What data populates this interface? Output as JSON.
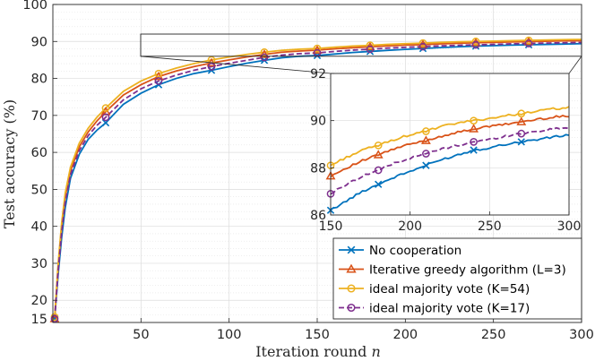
{
  "chart_data": {
    "type": "line",
    "xlabel": "Iteration round",
    "xlabel_var": "n",
    "ylabel": "Test accuracy (%)",
    "xlim": [
      0,
      300
    ],
    "ylim": [
      14,
      100
    ],
    "xticks": [
      50,
      100,
      150,
      200,
      250,
      300
    ],
    "yticks": [
      20,
      30,
      40,
      50,
      60,
      70,
      80,
      90,
      100
    ],
    "yticks_labels": [
      "20",
      "30",
      "40",
      "50",
      "60",
      "70",
      "80",
      "90",
      "100"
    ],
    "y_extra_tick_label": "15",
    "grid": true,
    "legend_location": "bottom-right",
    "series": [
      {
        "name": "No cooperation",
        "color": "#0072BD",
        "marker": "x",
        "style": "solid",
        "x": [
          1,
          3,
          5,
          7,
          10,
          15,
          20,
          25,
          30,
          40,
          50,
          60,
          70,
          80,
          90,
          100,
          110,
          120,
          130,
          140,
          150,
          160,
          170,
          180,
          190,
          200,
          210,
          220,
          230,
          240,
          250,
          260,
          270,
          280,
          290,
          300
        ],
        "y": [
          15,
          27,
          37,
          45,
          53,
          59.5,
          63.5,
          66,
          68,
          73,
          76,
          78.3,
          80,
          81.3,
          82.2,
          83.2,
          84.1,
          84.9,
          85.6,
          86,
          86.2,
          86.6,
          87,
          87.3,
          87.6,
          87.85,
          88.1,
          88.35,
          88.55,
          88.75,
          88.85,
          89,
          89.1,
          89.2,
          89.3,
          89.4
        ]
      },
      {
        "name": "Iterative greedy algorithm (L=3)",
        "color": "#D95319",
        "marker": "triangle",
        "style": "solid",
        "x": [
          1,
          3,
          5,
          7,
          10,
          15,
          20,
          25,
          30,
          40,
          50,
          60,
          70,
          80,
          90,
          100,
          110,
          120,
          130,
          140,
          150,
          160,
          170,
          180,
          190,
          200,
          210,
          220,
          230,
          240,
          250,
          260,
          270,
          280,
          290,
          300
        ],
        "y": [
          15,
          29,
          40,
          48,
          55,
          61.5,
          65.5,
          68.5,
          71,
          75.5,
          78.3,
          80.5,
          82,
          83.2,
          84.2,
          85,
          85.8,
          86.5,
          87.1,
          87.4,
          87.65,
          88,
          88.3,
          88.55,
          88.8,
          89,
          89.15,
          89.35,
          89.5,
          89.65,
          89.75,
          89.85,
          89.95,
          90.05,
          90.15,
          90.2
        ]
      },
      {
        "name": "ideal majority vote (K=54)",
        "color": "#EDB120",
        "marker": "circle",
        "style": "solid",
        "x": [
          1,
          3,
          5,
          7,
          10,
          15,
          20,
          25,
          30,
          40,
          50,
          60,
          70,
          80,
          90,
          100,
          110,
          120,
          130,
          140,
          150,
          160,
          170,
          180,
          190,
          200,
          210,
          220,
          230,
          240,
          250,
          260,
          270,
          280,
          290,
          300
        ],
        "y": [
          15.5,
          30,
          41,
          49,
          56,
          62.5,
          66.5,
          69.5,
          72,
          76.5,
          79.3,
          81.3,
          82.8,
          84,
          85,
          85.8,
          86.5,
          87.1,
          87.6,
          87.9,
          88.1,
          88.45,
          88.75,
          88.95,
          89.2,
          89.4,
          89.55,
          89.75,
          89.9,
          90,
          90.1,
          90.2,
          90.3,
          90.4,
          90.5,
          90.55
        ]
      },
      {
        "name": "ideal majority vote (K=17)",
        "color": "#7E2F8E",
        "marker": "circle",
        "style": "dashed",
        "x": [
          1,
          3,
          5,
          7,
          10,
          15,
          20,
          25,
          30,
          40,
          50,
          60,
          70,
          80,
          90,
          100,
          110,
          120,
          130,
          140,
          150,
          160,
          170,
          180,
          190,
          200,
          210,
          220,
          230,
          240,
          250,
          260,
          270,
          280,
          290,
          300
        ],
        "y": [
          15,
          28,
          38.5,
          46.5,
          54,
          60.5,
          64.5,
          67.3,
          69.5,
          74.2,
          77.2,
          79.3,
          80.9,
          82.2,
          83.2,
          84.1,
          84.9,
          85.7,
          86.3,
          86.7,
          86.9,
          87.3,
          87.65,
          87.9,
          88.2,
          88.4,
          88.6,
          88.8,
          88.95,
          89.1,
          89.2,
          89.35,
          89.45,
          89.55,
          89.65,
          89.7
        ]
      }
    ],
    "inset": {
      "xlim": [
        150,
        300
      ],
      "ylim": [
        86,
        92
      ],
      "xticks": [
        150,
        200,
        250,
        300
      ],
      "yticks": [
        86,
        88,
        90,
        92
      ]
    }
  }
}
